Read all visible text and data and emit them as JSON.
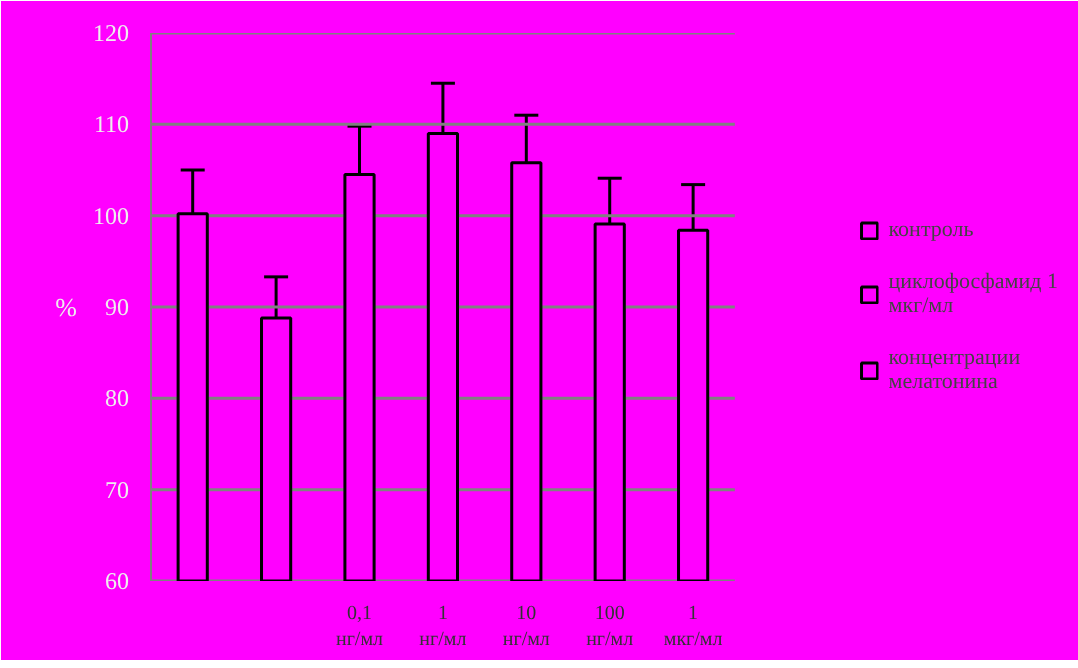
{
  "chart_data": {
    "type": "bar",
    "ylabel": "%",
    "categories": [
      null,
      null,
      "0,1 нг/мл",
      "1 нг/мл",
      "10 нг/мл",
      "100 нг/мл",
      "1 мкг/мл"
    ],
    "series": [
      {
        "name": "контроль",
        "color": "#ff00ff",
        "values": [
          100.2,
          null,
          null,
          null,
          null,
          null,
          null
        ],
        "errors": [
          4.8,
          null,
          null,
          null,
          null,
          null,
          null
        ]
      },
      {
        "name": "циклофосфамид 1 мкг/мл",
        "color": "#ff00ff",
        "values": [
          null,
          88.8,
          null,
          null,
          null,
          null,
          null
        ],
        "errors": [
          null,
          4.5,
          null,
          null,
          null,
          null,
          null
        ]
      },
      {
        "name": "концентрации мелатонина",
        "color": "#ff00ff",
        "values": [
          null,
          null,
          104.5,
          109,
          105.8,
          99.1,
          98.4
        ],
        "errors": [
          null,
          null,
          5.3,
          5.5,
          5.2,
          5,
          5
        ]
      }
    ],
    "ylim": [
      60,
      120
    ],
    "yticks": [
      60,
      70,
      80,
      90,
      100,
      110,
      120
    ],
    "grid": "y",
    "legend": "right"
  }
}
